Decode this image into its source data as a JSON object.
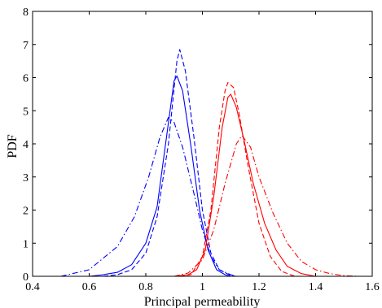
{
  "chart_data": {
    "type": "line",
    "title": "",
    "xlabel": "Principal permeability",
    "ylabel": "PDF",
    "xlim": [
      0.4,
      1.6
    ],
    "ylim": [
      0,
      8
    ],
    "x_ticks": [
      "0.4",
      "0.6",
      "0.8",
      "1",
      "1.2",
      "1.4",
      "1.6"
    ],
    "y_ticks": [
      "0",
      "1",
      "2",
      "3",
      "4",
      "5",
      "6",
      "7",
      "8"
    ],
    "grid": false,
    "legend": "none",
    "series": [
      {
        "color": "#0000ff",
        "line_style": "solid",
        "points": [
          [
            0.6,
            0
          ],
          [
            0.65,
            0.05
          ],
          [
            0.7,
            0.12
          ],
          [
            0.75,
            0.35
          ],
          [
            0.8,
            1.0
          ],
          [
            0.84,
            2.1
          ],
          [
            0.87,
            4.0
          ],
          [
            0.9,
            5.9
          ],
          [
            0.91,
            6.05
          ],
          [
            0.93,
            5.6
          ],
          [
            0.96,
            3.9
          ],
          [
            0.99,
            2.0
          ],
          [
            1.02,
            0.8
          ],
          [
            1.05,
            0.2
          ],
          [
            1.08,
            0.05
          ],
          [
            1.1,
            0
          ]
        ]
      },
      {
        "color": "#0000ff",
        "line_style": "dashed",
        "points": [
          [
            0.65,
            0
          ],
          [
            0.7,
            0.05
          ],
          [
            0.75,
            0.2
          ],
          [
            0.8,
            0.7
          ],
          [
            0.84,
            1.8
          ],
          [
            0.88,
            4.0
          ],
          [
            0.91,
            6.5
          ],
          [
            0.92,
            6.85
          ],
          [
            0.94,
            6.2
          ],
          [
            0.97,
            4.2
          ],
          [
            1.0,
            2.0
          ],
          [
            1.03,
            0.7
          ],
          [
            1.06,
            0.2
          ],
          [
            1.1,
            0.02
          ],
          [
            1.12,
            0
          ]
        ]
      },
      {
        "color": "#0000ff",
        "line_style": "dash-dot",
        "points": [
          [
            0.5,
            0
          ],
          [
            0.6,
            0.2
          ],
          [
            0.7,
            0.9
          ],
          [
            0.76,
            1.8
          ],
          [
            0.81,
            3.0
          ],
          [
            0.85,
            4.2
          ],
          [
            0.88,
            4.8
          ],
          [
            0.9,
            4.65
          ],
          [
            0.93,
            3.9
          ],
          [
            0.97,
            2.5
          ],
          [
            1.0,
            1.4
          ],
          [
            1.03,
            0.6
          ],
          [
            1.06,
            0.2
          ],
          [
            1.1,
            0.05
          ],
          [
            1.12,
            0
          ]
        ]
      },
      {
        "color": "#ff0000",
        "line_style": "solid",
        "points": [
          [
            0.9,
            0
          ],
          [
            0.95,
            0.05
          ],
          [
            0.98,
            0.2
          ],
          [
            1.01,
            0.8
          ],
          [
            1.04,
            2.4
          ],
          [
            1.07,
            4.5
          ],
          [
            1.09,
            5.4
          ],
          [
            1.1,
            5.5
          ],
          [
            1.12,
            5.1
          ],
          [
            1.15,
            4.0
          ],
          [
            1.18,
            2.8
          ],
          [
            1.22,
            1.6
          ],
          [
            1.26,
            0.8
          ],
          [
            1.3,
            0.3
          ],
          [
            1.35,
            0.08
          ],
          [
            1.4,
            0
          ]
        ]
      },
      {
        "color": "#ff0000",
        "line_style": "dashed",
        "points": [
          [
            0.92,
            0
          ],
          [
            0.96,
            0.05
          ],
          [
            1.0,
            0.6
          ],
          [
            1.03,
            2.0
          ],
          [
            1.06,
            4.5
          ],
          [
            1.08,
            5.6
          ],
          [
            1.09,
            5.85
          ],
          [
            1.11,
            5.7
          ],
          [
            1.13,
            4.9
          ],
          [
            1.16,
            3.4
          ],
          [
            1.2,
            1.6
          ],
          [
            1.24,
            0.6
          ],
          [
            1.28,
            0.15
          ],
          [
            1.32,
            0.02
          ],
          [
            1.34,
            0
          ]
        ]
      },
      {
        "color": "#ff0000",
        "line_style": "dash-dot",
        "points": [
          [
            0.9,
            0
          ],
          [
            0.95,
            0.1
          ],
          [
            1.0,
            0.5
          ],
          [
            1.04,
            1.4
          ],
          [
            1.08,
            2.8
          ],
          [
            1.12,
            4.0
          ],
          [
            1.14,
            4.25
          ],
          [
            1.17,
            3.9
          ],
          [
            1.2,
            3.0
          ],
          [
            1.25,
            1.9
          ],
          [
            1.3,
            1.0
          ],
          [
            1.35,
            0.45
          ],
          [
            1.4,
            0.2
          ],
          [
            1.45,
            0.08
          ],
          [
            1.5,
            0.02
          ],
          [
            1.55,
            0
          ]
        ]
      }
    ]
  }
}
